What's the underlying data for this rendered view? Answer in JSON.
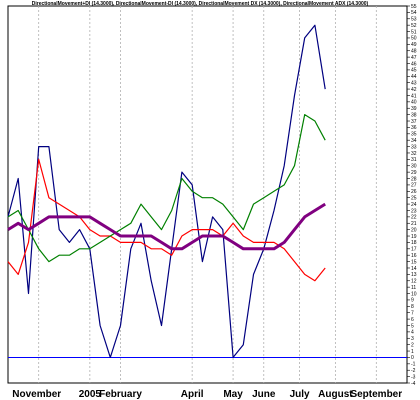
{
  "chart_data": {
    "type": "line",
    "title": "DirectionalMovement+DI (14.3000), DirectionalMovement-DI (14.3000), DirectionalMovement DX (14.3000), DirectionalMovement ADX (14.3000)",
    "xlabel": "",
    "ylabel": "",
    "x_tick_labels": [
      "November",
      "2005",
      "February",
      "April",
      "May",
      "June",
      "July",
      "August",
      "September"
    ],
    "y_tick_labels": [
      "-4",
      "-3",
      "-2",
      "-1",
      "0",
      "1",
      "2",
      "3",
      "4",
      "5",
      "6",
      "7",
      "8",
      "9",
      "10",
      "11",
      "12",
      "13",
      "14",
      "15",
      "16",
      "17",
      "18",
      "19",
      "20",
      "21",
      "22",
      "23",
      "24",
      "25",
      "26",
      "27",
      "28",
      "29",
      "30",
      "31",
      "32",
      "33",
      "34",
      "35",
      "36",
      "37",
      "38",
      "39",
      "40",
      "41",
      "42",
      "43",
      "44",
      "45",
      "46",
      "47",
      "48",
      "49",
      "50",
      "51",
      "52",
      "53",
      "54",
      "55"
    ],
    "ylim": [
      -4,
      55
    ],
    "grid": true,
    "x_index_range": [
      0,
      52
    ],
    "x": [
      0,
      2,
      4,
      6,
      8,
      10,
      12,
      14,
      16,
      18,
      20,
      22,
      24,
      26,
      28,
      30,
      32,
      34,
      36,
      38,
      40,
      42,
      44,
      46,
      48,
      50
    ],
    "series": [
      {
        "color": "#000080",
        "values": [
          22,
          28,
          10,
          33,
          33,
          20,
          18,
          20,
          17,
          5,
          0,
          5,
          17,
          21,
          12,
          5,
          17,
          29,
          27,
          15,
          22,
          20,
          0,
          2,
          13,
          17
        ]
      },
      {
        "color": "#ff0000",
        "values": [
          15,
          13,
          18,
          31,
          25,
          24,
          23,
          22,
          20,
          19,
          19,
          18,
          18,
          18,
          17,
          17,
          16,
          19,
          20,
          20,
          20,
          19,
          21,
          19,
          18,
          18
        ]
      },
      {
        "color": "#008000",
        "values": [
          22,
          23,
          20,
          17,
          15,
          16,
          16,
          17,
          17,
          18,
          19,
          20,
          21,
          24,
          22,
          20,
          23,
          28,
          26,
          25,
          25,
          24,
          22,
          20,
          24,
          25
        ]
      },
      {
        "color": "#800080",
        "values": [
          20,
          21,
          20,
          21,
          22,
          22,
          22,
          22,
          22,
          21,
          20,
          19,
          19,
          19,
          19,
          18,
          17,
          17,
          18,
          19,
          19,
          19,
          18,
          17,
          17,
          17
        ]
      }
    ],
    "extra_points": [
      {
        "series": 0,
        "x": [
          52,
          54,
          56,
          58,
          60,
          62
        ],
        "values": [
          23,
          30,
          41,
          50,
          52,
          42
        ]
      },
      {
        "series": 1,
        "x": [
          52,
          54,
          56,
          58,
          60,
          62
        ],
        "values": [
          18,
          17,
          15,
          13,
          12,
          14
        ]
      },
      {
        "series": 2,
        "x": [
          52,
          54,
          56,
          58,
          60,
          62
        ],
        "values": [
          26,
          27,
          30,
          38,
          37,
          34
        ]
      },
      {
        "series": 3,
        "x": [
          52,
          54,
          56,
          58,
          60,
          62
        ],
        "values": [
          17,
          18,
          20,
          22,
          23,
          24
        ]
      }
    ],
    "zero_line": 0,
    "zero_line_color": "#0000ff"
  }
}
